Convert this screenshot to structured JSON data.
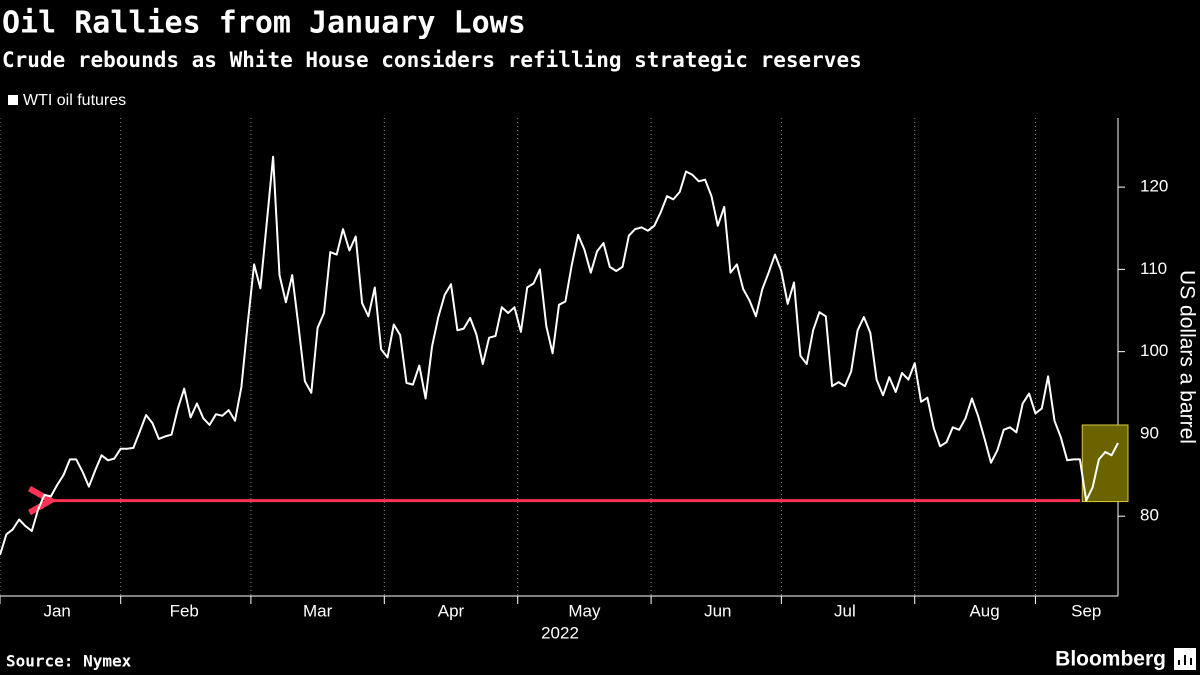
{
  "chart_data": {
    "type": "line",
    "title": "Oil Rallies from January Lows",
    "subtitle": "Crude rebounds as White House considers refilling strategic reserves",
    "y_label": "US dollars a barrel",
    "x_label": "2022",
    "source": "Source: Nymex",
    "brand": "Bloomberg",
    "ylim": [
      70.3,
      128.4
    ],
    "yticks": [
      80,
      90,
      100,
      110,
      120
    ],
    "categories": [
      null,
      null,
      null,
      null,
      null,
      null,
      null,
      null,
      null,
      "Jan",
      null,
      null,
      null,
      null,
      null,
      null,
      null,
      null,
      null,
      null,
      null,
      null,
      null,
      null,
      null,
      null,
      null,
      null,
      null,
      "Feb",
      null,
      null,
      null,
      null,
      null,
      null,
      null,
      null,
      null,
      null,
      null,
      null,
      null,
      null,
      null,
      null,
      null,
      null,
      null,
      null,
      "Mar",
      null,
      null,
      null,
      null,
      null,
      null,
      null,
      null,
      null,
      null,
      null,
      null,
      null,
      null,
      null,
      null,
      null,
      null,
      null,
      null,
      "Apr",
      null,
      null,
      null,
      null,
      null,
      null,
      null,
      null,
      null,
      null,
      null,
      null,
      null,
      null,
      null,
      null,
      null,
      null,
      null,
      null,
      "May",
      null,
      null,
      null,
      null,
      null,
      null,
      null,
      null,
      null,
      null,
      null,
      null,
      null,
      null,
      null,
      null,
      null,
      null,
      null,
      null,
      "Jun",
      null,
      null,
      null,
      null,
      null,
      null,
      null,
      null,
      null,
      null,
      null,
      null,
      null,
      null,
      null,
      null,
      null,
      null,
      null,
      "Jul",
      null,
      null,
      null,
      null,
      null,
      null,
      null,
      null,
      null,
      null,
      null,
      null,
      null,
      null,
      null,
      null,
      null,
      null,
      null,
      null,
      null,
      "Aug",
      null,
      null,
      null,
      null,
      null,
      null,
      null,
      null,
      null,
      null,
      null,
      null,
      null,
      null,
      null,
      "Sep",
      null,
      null,
      null,
      null,
      null
    ],
    "series": [
      {
        "name": "WTI oil futures",
        "color": "#ffffff",
        "values": [
          75.3,
          77.8,
          78.4,
          79.6,
          78.8,
          78.2,
          80.8,
          82.6,
          82.4,
          83.8,
          85.0,
          86.9,
          86.9,
          85.4,
          83.6,
          85.6,
          87.4,
          86.8,
          87.0,
          88.2,
          88.2,
          88.3,
          90.3,
          92.3,
          91.3,
          89.4,
          89.7,
          89.9,
          93.1,
          95.5,
          92.0,
          93.7,
          91.9,
          91.1,
          92.4,
          92.2,
          92.9,
          91.6,
          95.7,
          103.4,
          110.6,
          107.7,
          115.7,
          123.7,
          109.3,
          106.0,
          109.3,
          103.0,
          96.4,
          95.0,
          102.9,
          104.7,
          112.1,
          111.8,
          114.9,
          112.3,
          114.0,
          105.9,
          104.3,
          107.8,
          100.3,
          99.3,
          103.3,
          102.0,
          96.2,
          96.0,
          98.3,
          94.3,
          100.6,
          104.2,
          106.9,
          108.2,
          102.6,
          102.8,
          104.1,
          102.1,
          98.5,
          101.7,
          101.9,
          105.4,
          104.7,
          105.4,
          102.4,
          107.8,
          108.3,
          110.0,
          103.1,
          99.8,
          105.7,
          106.1,
          110.5,
          114.2,
          112.4,
          109.6,
          112.2,
          113.2,
          110.3,
          109.8,
          110.3,
          114.1,
          114.9,
          115.1,
          114.7,
          115.3,
          116.9,
          118.9,
          118.5,
          119.4,
          121.9,
          121.5,
          120.7,
          120.9,
          118.9,
          115.3,
          117.6,
          109.6,
          110.6,
          107.6,
          106.2,
          104.3,
          107.6,
          109.6,
          111.8,
          109.8,
          105.8,
          108.4,
          99.5,
          98.5,
          102.6,
          104.8,
          104.3,
          95.8,
          96.3,
          95.8,
          97.6,
          102.6,
          104.2,
          102.3,
          96.6,
          94.7,
          96.9,
          95.1,
          97.4,
          96.6,
          98.6,
          93.9,
          94.4,
          90.7,
          88.5,
          89.0,
          90.8,
          90.5,
          91.9,
          94.3,
          92.1,
          89.4,
          86.5,
          88.0,
          90.5,
          90.8,
          90.2,
          93.7,
          94.9,
          92.5,
          93.1,
          97.0,
          91.6,
          89.6,
          86.8,
          86.9,
          86.9,
          81.9,
          83.5,
          86.9,
          87.8,
          87.4,
          88.9
        ]
      }
    ],
    "highlight_color": "#6b6300",
    "arrow_color": "#ff3355"
  }
}
